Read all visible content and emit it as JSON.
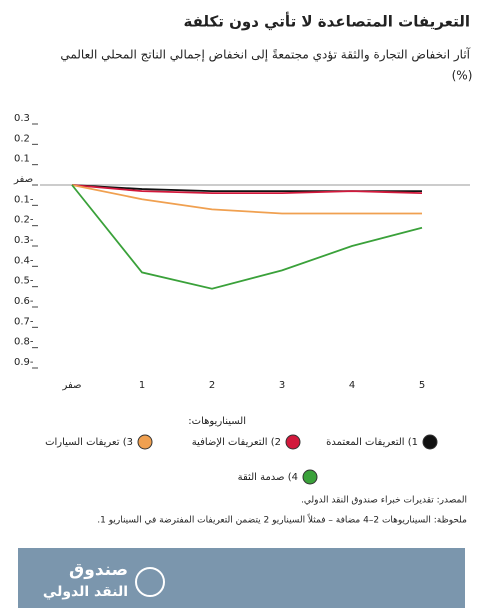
{
  "chart_data": {
    "type": "line",
    "title": "التعريفات المتصاعدة لا تأتي دون تكلفة",
    "subtitle": "آثار انخفاض التجارة والثقة تؤدي مجتمعةً إلى انخفاض إجمالي الناتج المحلي العالمي",
    "unit": "(%)",
    "categories": [
      "صفر",
      "1",
      "2",
      "3",
      "4",
      "5"
    ],
    "legend_title": "السيناريوهات:",
    "series": [
      {
        "name": "1) التعريفات المعتمدة",
        "color": "#111111",
        "values": [
          0,
          -0.02,
          -0.03,
          -0.03,
          -0.03,
          -0.03
        ]
      },
      {
        "name": "2) التعريفات الإضافية",
        "color": "#d2193c",
        "values": [
          0,
          -0.03,
          -0.04,
          -0.04,
          -0.03,
          -0.04
        ]
      },
      {
        "name": "3) تعريفات السيارات",
        "color": "#f0a050",
        "values": [
          0,
          -0.07,
          -0.12,
          -0.14,
          -0.14,
          -0.14
        ]
      },
      {
        "name": "4) صدمة الثقة",
        "color": "#3aa13a",
        "values": [
          0,
          -0.43,
          -0.51,
          -0.42,
          -0.3,
          -0.21
        ]
      }
    ],
    "ylim": [
      -0.9,
      0.3
    ],
    "yticks": [
      0.3,
      0.2,
      0.1,
      {
        "value": 0,
        "label": "صفر"
      },
      {
        "value": -0.1,
        "label": "0.1-"
      },
      {
        "value": -0.2,
        "label": "0.2-"
      },
      {
        "value": -0.3,
        "label": "0.3-"
      },
      {
        "value": -0.4,
        "label": "0.4-"
      },
      {
        "value": -0.5,
        "label": "0.5-"
      },
      {
        "value": -0.6,
        "label": "0.6-"
      },
      {
        "value": -0.7,
        "label": "0.7-"
      },
      {
        "value": -0.8,
        "label": "0.8-"
      },
      {
        "value": -0.9,
        "label": "0.9-"
      }
    ],
    "source": "المصدر: تقديرات خبراء صندوق النقد الدولي.",
    "note": "ملحوظة: السيناريوهات 2–4 مضافة – فمثلاً السيناريو 2 يتضمن التعريفات المفترضة في السيناريو 1.",
    "logo": [
      "صندوق",
      "النقد الدولي"
    ]
  }
}
